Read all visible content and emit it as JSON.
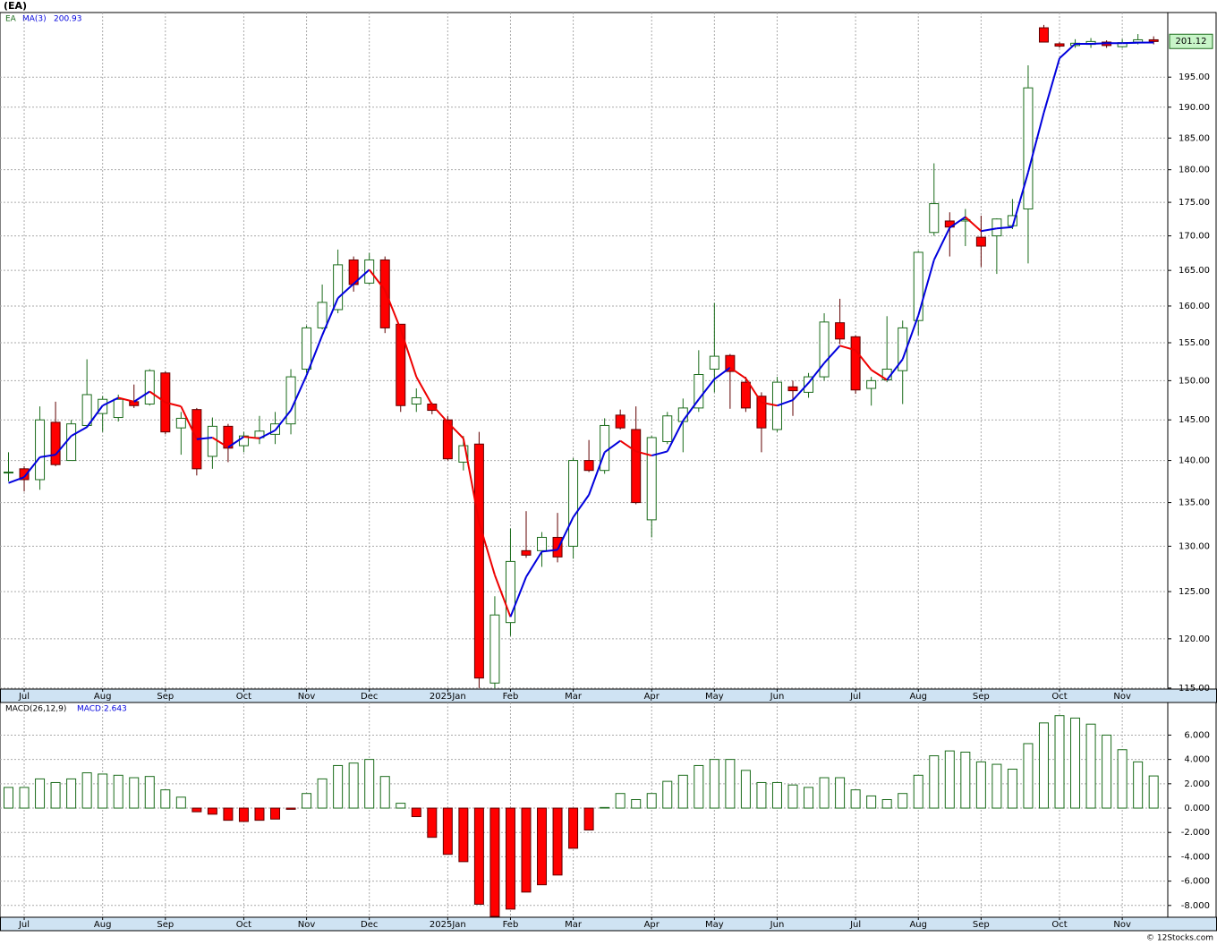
{
  "header": "(EA)",
  "footer": "© 12Stocks.com",
  "chart_data": [
    {
      "type": "candlestick",
      "ticker": "EA",
      "log_scale": true,
      "grid": true,
      "up_color": "#1a6b1a",
      "down_color": "#ff0000",
      "categories": [
        null,
        "Jul",
        null,
        null,
        null,
        null,
        "Aug",
        null,
        null,
        null,
        "Sep",
        null,
        null,
        null,
        null,
        "Oct",
        null,
        null,
        null,
        "Nov",
        null,
        null,
        null,
        "Dec",
        null,
        null,
        null,
        null,
        "2025Jan",
        null,
        null,
        null,
        "Feb",
        null,
        null,
        null,
        "Mar",
        null,
        null,
        null,
        null,
        "Apr",
        null,
        null,
        null,
        "May",
        null,
        null,
        null,
        "Jun",
        null,
        null,
        null,
        null,
        "Jul",
        null,
        null,
        null,
        "Aug",
        null,
        null,
        null,
        "Sep",
        null,
        null,
        null,
        null,
        "Oct",
        null,
        null,
        null,
        "Nov",
        null,
        null
      ],
      "open": [
        138.5,
        139,
        137.7,
        144.7,
        140,
        144.3,
        145.8,
        145.3,
        147.3,
        147,
        151,
        144,
        146.3,
        140.5,
        144.2,
        141.8,
        142.8,
        143.2,
        144.5,
        151.5,
        157,
        159.5,
        166.5,
        163.2,
        166.5,
        157.5,
        147,
        147,
        145,
        139.8,
        142,
        115.5,
        121.7,
        129.5,
        129.5,
        131,
        130,
        140,
        138.8,
        145.6,
        143.8,
        133,
        142.3,
        144.8,
        146.5,
        151.5,
        153.3,
        149.8,
        148,
        143.8,
        149.2,
        148.5,
        150.5,
        157.7,
        155.8,
        149,
        150.1,
        151.3,
        158,
        170.5,
        172.2,
        172.2,
        169.8,
        170,
        171.5,
        174,
        203.5,
        200.7,
        200.4,
        200.6,
        201,
        200.2,
        201,
        201.4
      ],
      "high": [
        141,
        139.3,
        146.7,
        147.3,
        145,
        152.8,
        148,
        148.2,
        149.5,
        151.5,
        151.2,
        146,
        146.5,
        145.3,
        144.5,
        143.5,
        145.5,
        146,
        151.5,
        157.3,
        163,
        168,
        167,
        167.5,
        167,
        157.5,
        149,
        147.2,
        145.5,
        143,
        143.5,
        124.5,
        132,
        134,
        131.6,
        133.8,
        140.3,
        142.5,
        145.2,
        146.3,
        146.7,
        143,
        146,
        147.7,
        154,
        160.4,
        153.5,
        150.5,
        148.5,
        150.5,
        150,
        151,
        159,
        161,
        156,
        150.5,
        158.6,
        158,
        167.8,
        181,
        173.5,
        174,
        173,
        172.6,
        175.5,
        197,
        204,
        201,
        201.5,
        201.7,
        201.3,
        201.5,
        202.4,
        202
      ],
      "low": [
        137.5,
        136.3,
        136.5,
        139.3,
        140,
        144,
        143.5,
        144.8,
        146.5,
        146.8,
        143.2,
        140.7,
        138.2,
        139,
        139.8,
        141,
        142,
        142,
        143.2,
        151,
        156.8,
        159,
        162,
        163,
        156.3,
        146,
        146,
        145.7,
        140,
        138.8,
        115,
        115,
        120.3,
        128.7,
        127.7,
        128.2,
        128.6,
        138.6,
        138.4,
        143.8,
        134.8,
        131,
        142,
        141,
        146,
        148.5,
        146.4,
        146,
        141,
        143.5,
        145.5,
        147.8,
        150,
        154.8,
        148.3,
        146.8,
        149.8,
        147,
        156,
        170,
        167,
        168.5,
        165.5,
        164.5,
        171,
        166,
        201,
        200,
        200,
        200,
        200,
        200,
        200.6,
        200.6
      ],
      "close": [
        138.6,
        137.7,
        145,
        139.5,
        144.5,
        148.2,
        147.6,
        147.6,
        146.8,
        151.3,
        143.5,
        145.2,
        139,
        144.2,
        141.5,
        143,
        143.6,
        144.5,
        150.5,
        157,
        160.5,
        165.8,
        163,
        166.5,
        157,
        146.8,
        147.8,
        146.2,
        140.2,
        141.8,
        116,
        122.5,
        128.3,
        129,
        131,
        128.8,
        140,
        138.8,
        144.3,
        144,
        135,
        142.8,
        145.5,
        146.5,
        150.8,
        153.2,
        151.2,
        146.5,
        144,
        149.8,
        148.7,
        150.5,
        157.8,
        155.5,
        148.8,
        150,
        151.5,
        157,
        167.6,
        174.8,
        171.3,
        172.4,
        168.5,
        172.5,
        173,
        193.2,
        201,
        200.3,
        200.8,
        201.1,
        200.4,
        200.9,
        201.4,
        201.1
      ],
      "last_price": {
        "value": 201.12,
        "label": "201.12"
      },
      "ma": {
        "name": "MA(3)",
        "up_color": "#0000dd",
        "down_color": "#ee0000",
        "value_label": "200.93",
        "values": [
          137.3,
          138,
          140.4,
          140.7,
          143,
          144.1,
          146.8,
          147.8,
          147.3,
          148.6,
          147.2,
          146.7,
          142.6,
          142.8,
          141.6,
          142.9,
          142.7,
          143.7,
          146.2,
          150.7,
          156,
          161.1,
          163.1,
          165.1,
          162.2,
          156.8,
          150.5,
          146.9,
          144.7,
          142.7,
          132.7,
          126.8,
          122.3,
          126.6,
          129.4,
          129.6,
          133.3,
          135.9,
          141,
          142.4,
          141.1,
          140.6,
          141.1,
          144.9,
          147.6,
          150.2,
          151.7,
          150.3,
          147.2,
          146.8,
          147.5,
          149.7,
          152.3,
          154.6,
          154,
          151.4,
          150.1,
          152.8,
          158.7,
          166.5,
          171.2,
          172.8,
          170.7,
          171.1,
          171.3,
          179.6,
          189.1,
          198.2,
          200.7,
          200.7,
          200.8,
          200.8,
          200.9,
          200.93
        ]
      },
      "ylim": [
        114.9,
        206.2
      ],
      "yticks": [
        {
          "value": 115,
          "label": "115.00"
        },
        {
          "value": 120,
          "label": "120.00"
        },
        {
          "value": 125,
          "label": "125.00"
        },
        {
          "value": 130,
          "label": "130.00"
        },
        {
          "value": 135,
          "label": "135.00"
        },
        {
          "value": 140,
          "label": "140.00"
        },
        {
          "value": 145,
          "label": "145.00"
        },
        {
          "value": 150,
          "label": "150.00"
        },
        {
          "value": 155,
          "label": "155.00"
        },
        {
          "value": 160,
          "label": "160.00"
        },
        {
          "value": 165,
          "label": "165.00"
        },
        {
          "value": 170,
          "label": "170.00"
        },
        {
          "value": 175,
          "label": "175.00"
        },
        {
          "value": 180,
          "label": "180.00"
        },
        {
          "value": 185,
          "label": "185.00"
        },
        {
          "value": 190,
          "label": "190.00"
        },
        {
          "value": 195,
          "label": "195.00"
        }
      ]
    },
    {
      "type": "bar",
      "title": "MACD(26,12,9)",
      "legend": "MACD:2.643",
      "grid": true,
      "up_color": "#1a6b1a",
      "down_color": "#ff0000",
      "categories": [
        null,
        "Jul",
        null,
        null,
        null,
        null,
        "Aug",
        null,
        null,
        null,
        "Sep",
        null,
        null,
        null,
        null,
        "Oct",
        null,
        null,
        null,
        "Nov",
        null,
        null,
        null,
        "Dec",
        null,
        null,
        null,
        null,
        "2025Jan",
        null,
        null,
        null,
        "Feb",
        null,
        null,
        null,
        "Mar",
        null,
        null,
        null,
        null,
        "Apr",
        null,
        null,
        null,
        "May",
        null,
        null,
        null,
        "Jun",
        null,
        null,
        null,
        null,
        "Jul",
        null,
        null,
        null,
        "Aug",
        null,
        null,
        null,
        "Sep",
        null,
        null,
        null,
        null,
        "Oct",
        null,
        null,
        null,
        "Nov",
        null,
        null
      ],
      "values": [
        1.7,
        1.7,
        2.4,
        2.1,
        2.4,
        2.9,
        2.8,
        2.7,
        2.5,
        2.6,
        1.5,
        0.9,
        -0.3,
        -0.5,
        -1.0,
        -1.1,
        -1.0,
        -0.9,
        -0.1,
        1.2,
        2.4,
        3.5,
        3.7,
        4.0,
        2.6,
        0.4,
        -0.7,
        -2.4,
        -3.8,
        -4.4,
        -7.9,
        -8.9,
        -8.3,
        -6.9,
        -6.3,
        -5.5,
        -3.3,
        -1.8,
        0.05,
        1.2,
        0.7,
        1.2,
        2.2,
        2.7,
        3.5,
        4.0,
        4.0,
        3.1,
        2.1,
        2.1,
        1.9,
        1.7,
        2.5,
        2.5,
        1.5,
        1.0,
        0.7,
        1.2,
        2.7,
        4.3,
        4.7,
        4.6,
        3.8,
        3.6,
        3.2,
        5.3,
        7.0,
        7.6,
        7.4,
        6.9,
        6.0,
        4.8,
        3.8,
        2.643
      ],
      "ylim": [
        -8.97,
        8.68
      ],
      "yticks": [
        {
          "value": -8,
          "label": "-8.000"
        },
        {
          "value": -6,
          "label": "-6.000"
        },
        {
          "value": -4,
          "label": "-4.000"
        },
        {
          "value": -2,
          "label": "-2.000"
        },
        {
          "value": 0,
          "label": "0.000"
        },
        {
          "value": 2,
          "label": "2.000"
        },
        {
          "value": 4,
          "label": "4.000"
        },
        {
          "value": 6,
          "label": "6.000"
        }
      ]
    }
  ]
}
